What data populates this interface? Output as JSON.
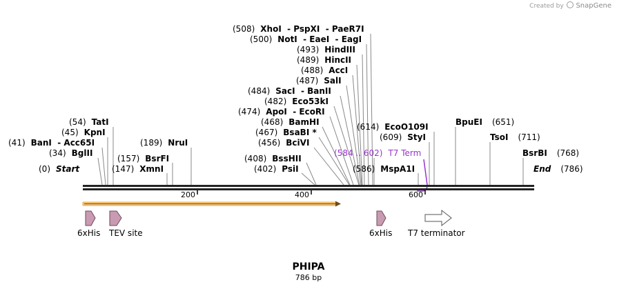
{
  "credit": {
    "text": "Created by",
    "brand": "SnapGene"
  },
  "plasmid": {
    "name": "PHIPA",
    "length": "786 bp"
  },
  "sequence_end": "786",
  "map_start": {
    "label": "Start",
    "pos": "(0)"
  },
  "map_end": {
    "label": "End",
    "pos": "(786)"
  },
  "ruler_ticks": [
    "200",
    "400",
    "600"
  ],
  "sites": [
    {
      "id": "xhoi",
      "pos": "(508)",
      "name": "XhoI  - PspXI  - PaeR7I"
    },
    {
      "id": "noti",
      "pos": "(500)",
      "name": "NotI  - EaeI  - EagI"
    },
    {
      "id": "hindiii",
      "pos": "(493)",
      "name": "HindIII"
    },
    {
      "id": "hincii",
      "pos": "(489)",
      "name": "HincII"
    },
    {
      "id": "acci",
      "pos": "(488)",
      "name": "AccI"
    },
    {
      "id": "sali",
      "pos": "(487)",
      "name": "SalI"
    },
    {
      "id": "saci",
      "pos": "(484)",
      "name": "SacI  - BanII"
    },
    {
      "id": "eco53ki",
      "pos": "(482)",
      "name": "Eco53kI"
    },
    {
      "id": "apoi",
      "pos": "(474)",
      "name": "ApoI  - EcoRI"
    },
    {
      "id": "bamhi",
      "pos": "(468)",
      "name": "BamHI"
    },
    {
      "id": "bsabi",
      "pos": "(467)",
      "name": "BsaBI *"
    },
    {
      "id": "bcivi",
      "pos": "(456)",
      "name": "BciVI"
    },
    {
      "id": "bsshii",
      "pos": "(408)",
      "name": "BssHII"
    },
    {
      "id": "psii",
      "pos": "(402)",
      "name": "PsiI"
    },
    {
      "id": "tati",
      "pos": "(54)",
      "name": "TatI"
    },
    {
      "id": "kpni",
      "pos": "(45)",
      "name": "KpnI"
    },
    {
      "id": "bani",
      "pos": "(41)",
      "name": "BanI  - Acc65I"
    },
    {
      "id": "bglii",
      "pos": "(34)",
      "name": "BglII"
    },
    {
      "id": "bsrfi",
      "pos": "(157)",
      "name": "BsrFI"
    },
    {
      "id": "xmni",
      "pos": "(147)",
      "name": "XmnI"
    },
    {
      "id": "drui",
      "pos": "(189)",
      "name": "NruI"
    },
    {
      "id": "eco0109i",
      "pos": "(614)",
      "name": "EcoO109I"
    },
    {
      "id": "styi",
      "pos": "(609)",
      "name": "StyI"
    },
    {
      "id": "mspa1i",
      "pos": "(586)",
      "name": "MspA1I"
    },
    {
      "id": "bpuei",
      "pos": "(651)",
      "name": "BpuEI"
    },
    {
      "id": "tsoi",
      "pos": "(711)",
      "name": "TsoI"
    },
    {
      "id": "bsrbi",
      "pos": "(768)",
      "name": "BsrBI"
    }
  ],
  "t7_term_label": {
    "range": "(584 .. 602)",
    "name": "T7 Term"
  },
  "features": [
    {
      "id": "6xhis-1",
      "label": "6xHis"
    },
    {
      "id": "tev-site",
      "label": "TEV site"
    },
    {
      "id": "6xhis-2",
      "label": "6xHis"
    },
    {
      "id": "t7-terminator",
      "label": "T7 terminator"
    }
  ],
  "colors": {
    "feature_pink": "#c99bb2",
    "feature_border": "#6e4a5b",
    "orf_orange": "#f0a840",
    "t7_purple": "#9933cc",
    "line_gray": "#888888"
  }
}
